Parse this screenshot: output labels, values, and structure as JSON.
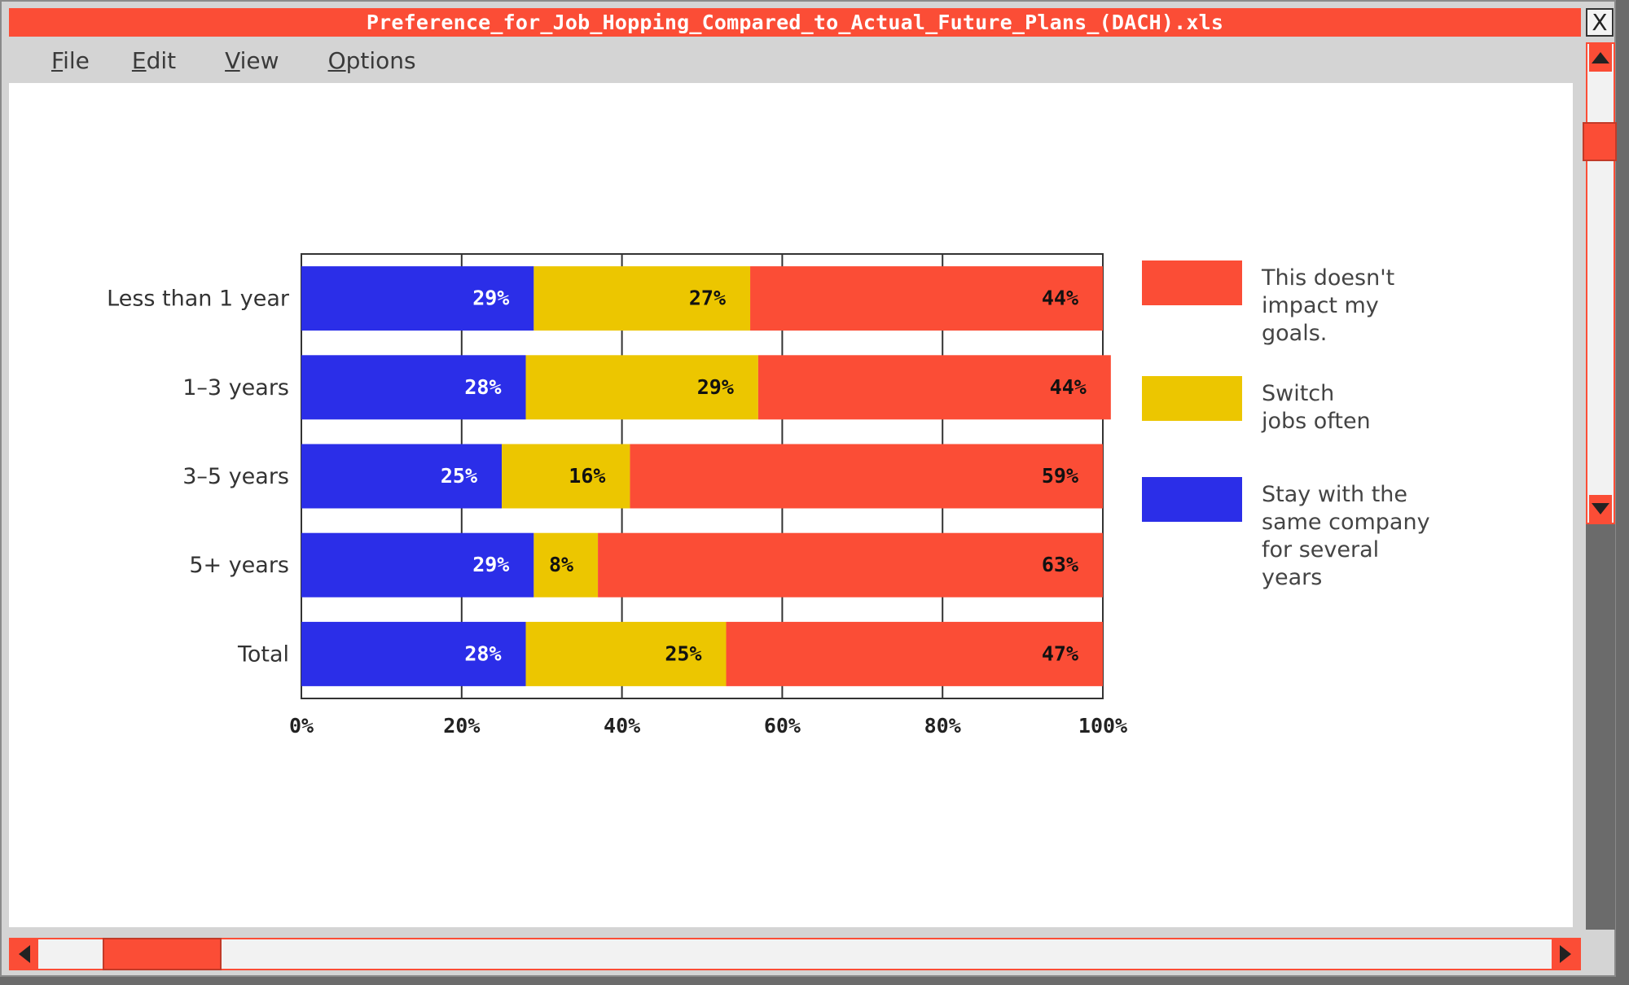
{
  "window": {
    "title": "Preference_for_Job_Hopping_Compared_to_Actual_Future_Plans_(DACH).xls",
    "close_label": "X"
  },
  "menu": [
    {
      "label": "File",
      "accel": "F"
    },
    {
      "label": "Edit",
      "accel": "E"
    },
    {
      "label": "View",
      "accel": "V"
    },
    {
      "label": "Options",
      "accel": "O"
    }
  ],
  "chart_data": {
    "type": "bar",
    "orientation": "horizontal",
    "stacked": true,
    "normalized_percent": true,
    "categories": [
      "Less than 1 year",
      "1–3 years",
      "3–5 years",
      "5+ years",
      "Total"
    ],
    "series": [
      {
        "name": "Stay with the same company for several years",
        "legend_lines": [
          "Stay with the",
          "same company",
          "for several",
          "years"
        ],
        "color": "#2b2ee8",
        "label_color": "#ffffff",
        "values": [
          29,
          28,
          25,
          29,
          28
        ],
        "labels": [
          "29%",
          "28%",
          "25%",
          "29%",
          "28%"
        ]
      },
      {
        "name": "Switch jobs often",
        "legend_lines": [
          "Switch",
          "jobs often"
        ],
        "color": "#ecc600",
        "label_color": "#111111",
        "values": [
          27,
          29,
          16,
          8,
          25
        ],
        "labels": [
          "27%",
          "29%",
          "16%",
          "8%",
          "25%"
        ]
      },
      {
        "name": "This doesn't impact my goals.",
        "legend_lines": [
          "This doesn't",
          "impact my",
          "goals."
        ],
        "color": "#fb4d36",
        "label_color": "#111111",
        "values": [
          44,
          44,
          59,
          63,
          47
        ],
        "labels": [
          "44%",
          "44%",
          "59%",
          "63%",
          "47%"
        ]
      }
    ],
    "legend_order": [
      2,
      1,
      0
    ],
    "xlim": [
      0,
      100
    ],
    "xticks": [
      0,
      20,
      40,
      60,
      80,
      100
    ],
    "xtick_labels": [
      "0%",
      "20%",
      "40%",
      "60%",
      "80%",
      "100%"
    ],
    "grid": true,
    "legend_position": "right"
  }
}
